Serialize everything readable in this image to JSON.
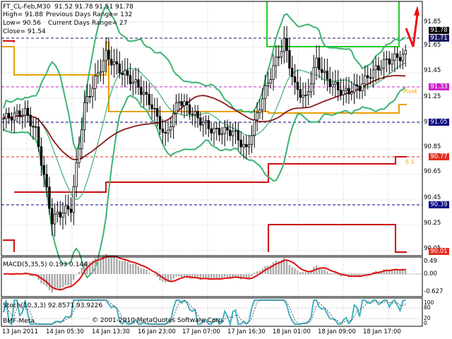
{
  "header": {
    "symbol": "FT_CL-Feb,M30",
    "bar": "91.52 91.78 91.51 91.78",
    "high": "High= 91.88",
    "prev_range": "Previous Days Range= 132",
    "low": "Low= 90.56",
    "cur_range": "Current Days Range= 27",
    "close": "Close= 91.54"
  },
  "price_axis": [
    "91.85",
    "91.65",
    "91.45",
    "91.25",
    "91.05",
    "90.85",
    "90.65",
    "90.45",
    "90.25",
    "90.05"
  ],
  "price_tags": [
    {
      "label": "91.78",
      "color": "#000000"
    },
    {
      "label": "91.71",
      "color": "#1a1a66"
    },
    {
      "label": "91.33",
      "color": "#cc22cc"
    },
    {
      "label": "91.05",
      "color": "#000080"
    },
    {
      "label": "90.77",
      "color": "#e03020"
    },
    {
      "label": "90.39",
      "color": "#000080"
    },
    {
      "label": "90.01",
      "color": "#e03020"
    }
  ],
  "levels": {
    "pivot": "Pivot",
    "s1": "S 1"
  },
  "macd": {
    "label": "MACD(5,35,5) 0.193 0.144",
    "axis": [
      "0.49",
      "0.00",
      "-0.627"
    ]
  },
  "stoch": {
    "label": "Stoch(10,3,3) 92.8571 93.9226",
    "axis": [
      "100",
      "80",
      "20",
      "0"
    ]
  },
  "footer": {
    "copyright": "© 2001-2010 MetaQuotes Software Corp.",
    "watermark": "BMF-Meta"
  },
  "time_axis": [
    "13 Jan 2011",
    "14 Jan 05:30",
    "14 Jan 13:30",
    "16 Jan 23:00",
    "17 Jan 07:00",
    "17 Jan 16:30",
    "18 Jan 01:00",
    "18 Jan 09:00",
    "18 Jan 17:00"
  ],
  "colors": {
    "candle": "#000000",
    "bollinger": "#3cb371",
    "channel": "#22cc22",
    "support": "#cc1010",
    "pivot": "#e8a000",
    "ma": "#8b1a1a",
    "macd_line": "#dd1111",
    "macd_hist": "#a9a9a9",
    "stoch_main": "#40b0c0",
    "stoch_signal": "#555555",
    "arrow": "#ee1111"
  }
}
